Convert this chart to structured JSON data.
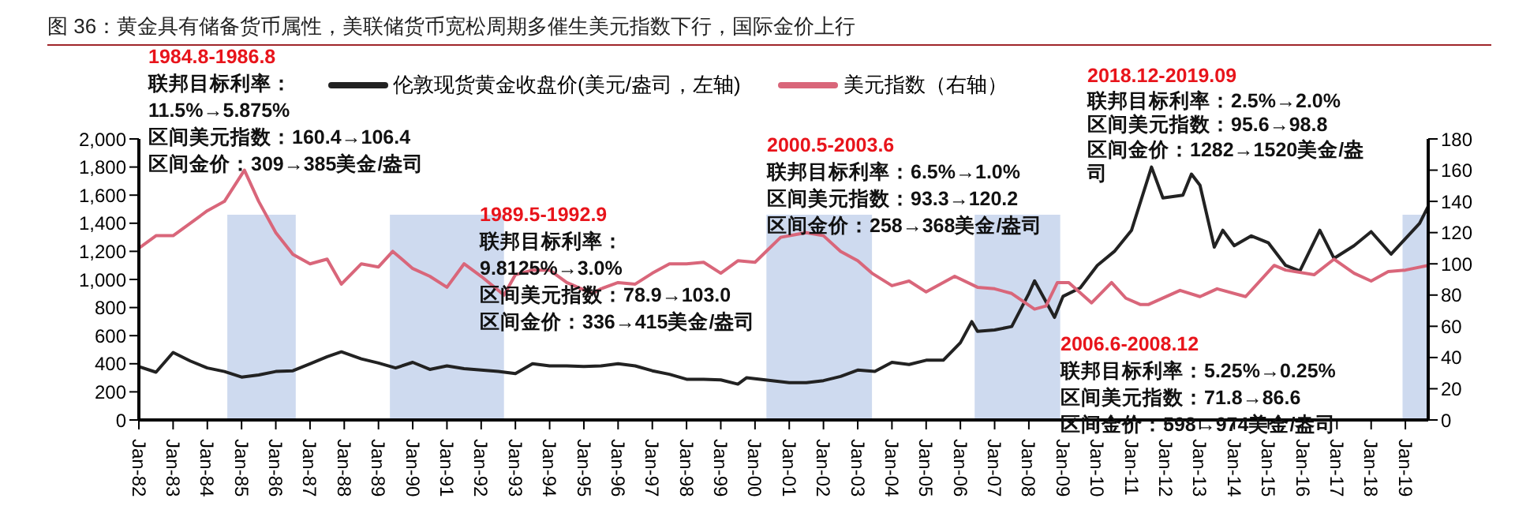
{
  "chart_data": {
    "type": "line",
    "title": "图 36：黄金具有储备货币属性，美联储货币宽松周期多催生美元指数下行，国际金价上行",
    "legend": "top",
    "grid": false,
    "xlim": [
      "1982-01",
      "2019-09"
    ],
    "xticks": [
      {
        "value": "1982-01",
        "label": "Jan-82"
      },
      {
        "value": "1983-01",
        "label": "Jan-83"
      },
      {
        "value": "1984-01",
        "label": "Jan-84"
      },
      {
        "value": "1985-01",
        "label": "Jan-85"
      },
      {
        "value": "1986-01",
        "label": "Jan-86"
      },
      {
        "value": "1987-01",
        "label": "Jan-87"
      },
      {
        "value": "1988-01",
        "label": "Jan-88"
      },
      {
        "value": "1989-01",
        "label": "Jan-89"
      },
      {
        "value": "1990-01",
        "label": "Jan-90"
      },
      {
        "value": "1991-01",
        "label": "Jan-91"
      },
      {
        "value": "1992-01",
        "label": "Jan-92"
      },
      {
        "value": "1993-01",
        "label": "Jan-93"
      },
      {
        "value": "1994-01",
        "label": "Jan-94"
      },
      {
        "value": "1995-01",
        "label": "Jan-95"
      },
      {
        "value": "1996-01",
        "label": "Jan-96"
      },
      {
        "value": "1997-01",
        "label": "Jan-97"
      },
      {
        "value": "1998-01",
        "label": "Jan-98"
      },
      {
        "value": "1999-01",
        "label": "Jan-99"
      },
      {
        "value": "2000-01",
        "label": "Jan-00"
      },
      {
        "value": "2001-01",
        "label": "Jan-01"
      },
      {
        "value": "2002-01",
        "label": "Jan-02"
      },
      {
        "value": "2003-01",
        "label": "Jan-03"
      },
      {
        "value": "2004-01",
        "label": "Jan-04"
      },
      {
        "value": "2005-01",
        "label": "Jan-05"
      },
      {
        "value": "2006-01",
        "label": "Jan-06"
      },
      {
        "value": "2007-01",
        "label": "Jan-07"
      },
      {
        "value": "2008-01",
        "label": "Jan-08"
      },
      {
        "value": "2009-01",
        "label": "Jan-09"
      },
      {
        "value": "2010-01",
        "label": "Jan-10"
      },
      {
        "value": "2011-01",
        "label": "Jan-11"
      },
      {
        "value": "2012-01",
        "label": "Jan-12"
      },
      {
        "value": "2013-01",
        "label": "Jan-13"
      },
      {
        "value": "2014-01",
        "label": "Jan-14"
      },
      {
        "value": "2015-01",
        "label": "Jan-15"
      },
      {
        "value": "2016-01",
        "label": "Jan-16"
      },
      {
        "value": "2017-01",
        "label": "Jan-17"
      },
      {
        "value": "2018-01",
        "label": "Jan-18"
      },
      {
        "value": "2019-01",
        "label": "Jan-19"
      }
    ],
    "ylim": [
      0,
      2000
    ],
    "yticks": [
      0,
      {
        "value": 200,
        "label": "200"
      },
      {
        "value": 400,
        "label": "400"
      },
      {
        "value": 600,
        "label": "600"
      },
      {
        "value": 800,
        "label": "800"
      },
      {
        "value": 1000,
        "label": "1,000"
      },
      {
        "value": 1200,
        "label": "1,200"
      },
      {
        "value": 1400,
        "label": "1,400"
      },
      {
        "value": 1600,
        "label": "1,600"
      },
      {
        "value": 1800,
        "label": "1,800"
      },
      {
        "value": 2000,
        "label": "2,000"
      }
    ],
    "y2lim": [
      0,
      180
    ],
    "y2ticks": [
      0,
      20,
      40,
      60,
      80,
      100,
      120,
      140,
      160,
      180
    ],
    "series": [
      {
        "name": "伦敦现货黄金收盘价(美元/盎司，左轴)",
        "color": "#222222",
        "x": [
          "1982-01",
          "1982-07",
          "1983-01",
          "1983-07",
          "1984-01",
          "1984-07",
          "1985-01",
          "1985-07",
          "1986-01",
          "1986-07",
          "1987-01",
          "1987-07",
          "1987-12",
          "1988-07",
          "1989-01",
          "1989-07",
          "1990-01",
          "1990-07",
          "1991-01",
          "1991-07",
          "1992-01",
          "1992-07",
          "1993-01",
          "1993-07",
          "1994-01",
          "1994-07",
          "1995-01",
          "1995-07",
          "1996-01",
          "1996-07",
          "1997-01",
          "1997-07",
          "1998-01",
          "1998-07",
          "1999-01",
          "1999-07",
          "1999-10",
          "2000-07",
          "2001-01",
          "2001-07",
          "2002-01",
          "2002-07",
          "2003-01",
          "2003-07",
          "2004-01",
          "2004-07",
          "2005-01",
          "2005-07",
          "2006-01",
          "2006-05",
          "2006-07",
          "2007-01",
          "2007-07",
          "2008-01",
          "2008-03",
          "2008-10",
          "2009-01",
          "2009-07",
          "2010-01",
          "2010-07",
          "2011-01",
          "2011-08",
          "2011-12",
          "2012-07",
          "2012-10",
          "2013-01",
          "2013-06",
          "2013-09",
          "2014-01",
          "2014-07",
          "2015-01",
          "2015-07",
          "2015-12",
          "2016-07",
          "2016-12",
          "2017-07",
          "2018-01",
          "2018-08",
          "2019-01",
          "2019-06",
          "2019-09"
        ],
        "values": [
          380,
          340,
          480,
          420,
          370,
          345,
          305,
          320,
          345,
          350,
          400,
          450,
          485,
          435,
          405,
          370,
          410,
          360,
          385,
          365,
          355,
          345,
          330,
          400,
          385,
          385,
          380,
          385,
          400,
          385,
          350,
          325,
          290,
          290,
          285,
          255,
          300,
          280,
          265,
          265,
          280,
          310,
          355,
          345,
          410,
          395,
          425,
          425,
          550,
          700,
          630,
          640,
          665,
          900,
          990,
          730,
          880,
          940,
          1100,
          1200,
          1350,
          1800,
          1580,
          1600,
          1750,
          1670,
          1230,
          1350,
          1240,
          1310,
          1260,
          1100,
          1060,
          1350,
          1150,
          1240,
          1340,
          1180,
          1290,
          1400,
          1520
        ]
      },
      {
        "name": "美元指数（右轴）",
        "color": "#d9667a",
        "axis": "y2",
        "x": [
          "1982-01",
          "1982-07",
          "1983-01",
          "1983-07",
          "1984-01",
          "1984-07",
          "1985-02",
          "1985-07",
          "1986-01",
          "1986-07",
          "1987-01",
          "1987-07",
          "1987-12",
          "1988-07",
          "1989-01",
          "1989-06",
          "1990-01",
          "1990-07",
          "1991-01",
          "1991-07",
          "1992-01",
          "1992-09",
          "1993-01",
          "1993-07",
          "1994-01",
          "1994-07",
          "1995-04",
          "1995-07",
          "1996-01",
          "1996-07",
          "1997-01",
          "1997-07",
          "1998-01",
          "1998-07",
          "1999-01",
          "1999-07",
          "2000-01",
          "2000-10",
          "2001-07",
          "2002-01",
          "2002-07",
          "2003-01",
          "2003-06",
          "2004-01",
          "2004-07",
          "2005-01",
          "2005-11",
          "2006-07",
          "2007-01",
          "2007-07",
          "2008-03",
          "2008-07",
          "2008-11",
          "2009-03",
          "2009-11",
          "2010-06",
          "2010-11",
          "2011-04",
          "2011-07",
          "2012-06",
          "2013-01",
          "2013-07",
          "2014-05",
          "2015-03",
          "2015-07",
          "2016-05",
          "2016-12",
          "2017-07",
          "2018-01",
          "2018-07",
          "2019-01",
          "2019-09"
        ],
        "values": [
          110,
          118,
          118,
          126,
          134,
          140,
          160,
          140,
          120,
          106,
          100,
          103,
          87,
          100,
          98,
          108,
          97,
          92,
          85,
          100,
          92,
          80,
          93,
          96,
          96,
          88,
          81,
          84,
          88,
          87,
          94,
          100,
          100,
          101,
          94,
          102,
          101,
          117,
          120,
          118,
          108,
          102,
          94,
          86,
          89,
          82,
          92,
          85,
          84,
          81,
          71,
          73,
          88,
          88,
          75,
          88,
          78,
          74,
          74,
          83,
          79,
          84,
          79,
          99,
          96,
          93,
          103,
          94,
          89,
          95,
          96,
          99
        ]
      }
    ],
    "bands": [
      {
        "axis": "x",
        "from": "1984-08",
        "to": "1986-08",
        "color": "#c5d3ec"
      },
      {
        "axis": "x",
        "from": "1989-05",
        "to": "1992-09",
        "color": "#c5d3ec"
      },
      {
        "axis": "x",
        "from": "2000-05",
        "to": "2003-06",
        "color": "#c5d3ec"
      },
      {
        "axis": "x",
        "from": "2006-06",
        "to": "2008-12",
        "color": "#c5d3ec"
      },
      {
        "axis": "x",
        "from": "2018-12",
        "to": "2019-09",
        "color": "#c5d3ec"
      }
    ],
    "annotations": [
      "1984.8-1986.8\n联邦目标利率：\n11.5%→5.875%\n区间美元指数：160.4→106.4\n区间金价：309→385美金/盎司",
      "1989.5-1992.9\n联邦目标利率：\n9.8125%→3.0%\n区间美元指数：78.9→103.0\n区间金价：336→415美金/盎司",
      "2000.5-2003.6\n联邦目标利率：6.5%→1.0%\n区间美元指数：93.3→120.2\n区间金价：258→368美金/盎司",
      "2018.12-2019.09\n联邦目标利率：2.5%→2.0%\n区间美元指数：95.6→98.8\n区间金价：1282→1520美金/盎司",
      "2006.6-2008.12\n联邦目标利率：5.25%→0.25%\n区间美元指数：71.8→86.6\n区间金价：598→974美金/盎司"
    ]
  }
}
